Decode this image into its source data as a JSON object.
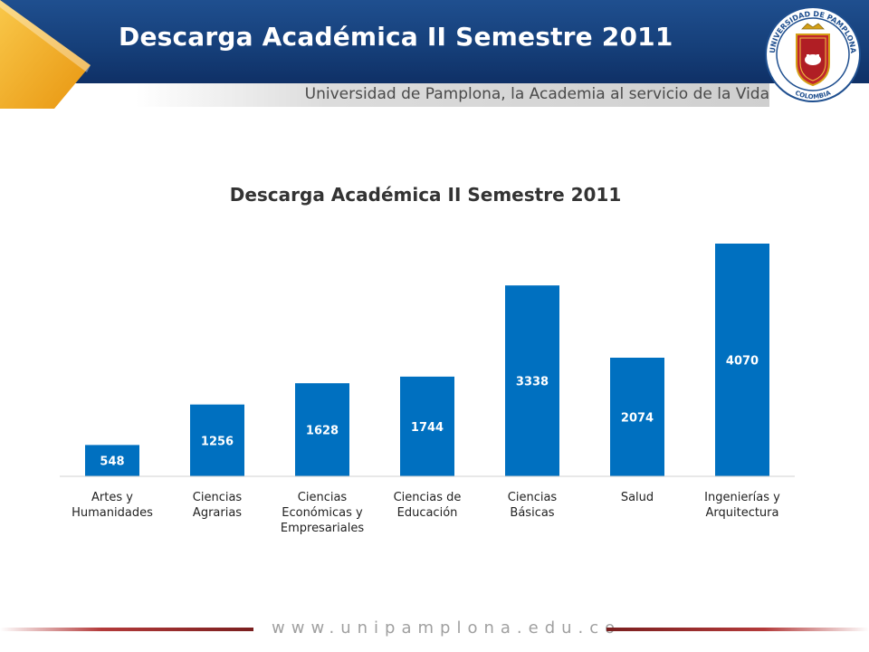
{
  "header": {
    "title": "Descarga Académica II Semestre 2011",
    "tagline": "Universidad de Pamplona, la Academia al servicio de la Vida",
    "seal_top_text": "UNIVERSIDAD DE PAMPLONA",
    "seal_bottom_text": "COLOMBIA"
  },
  "footer": {
    "url": "www.unipamplona.edu.co"
  },
  "colors": {
    "header_blue": "#1a4a8a",
    "accent_orange": "#f4b21b",
    "bar_blue": "#0070c0",
    "footer_red": "#9b2a2a"
  },
  "chart_data": {
    "type": "bar",
    "title": "Descarga Académica II Semestre 2011",
    "categories": [
      [
        "Artes y",
        "Humanidades"
      ],
      [
        "Ciencias",
        "Agrarias"
      ],
      [
        "Ciencias",
        "Económicas y",
        "Empresariales"
      ],
      [
        "Ciencias de",
        "Educación"
      ],
      [
        "Ciencias",
        "Básicas"
      ],
      [
        "Salud"
      ],
      [
        "Ingenierías y",
        "Arquitectura"
      ]
    ],
    "values": [
      548,
      1256,
      1628,
      1744,
      3338,
      2074,
      4070
    ],
    "data_labels": true,
    "grid": false,
    "legend": "none"
  }
}
